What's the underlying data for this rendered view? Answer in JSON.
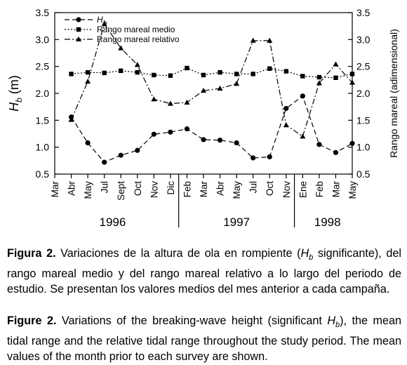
{
  "chart_data": {
    "type": "line",
    "categories": [
      "Mar",
      "Abr",
      "May",
      "Jul",
      "Sept",
      "Oct",
      "Nov",
      "Dic",
      "Feb",
      "Mar",
      "Abr",
      "May",
      "Jul",
      "Oct",
      "Nov",
      "Ene",
      "Feb",
      "Mar",
      "May"
    ],
    "year_groups": [
      {
        "label": "1996",
        "start": 0,
        "end": 7
      },
      {
        "label": "1997",
        "start": 8,
        "end": 14
      },
      {
        "label": "1998",
        "start": 15,
        "end": 18
      }
    ],
    "y_left": {
      "label": "H",
      "label_sub": "b",
      "label_unit": " (m)",
      "lim": [
        0.5,
        3.5
      ],
      "ticks": [
        "0.5",
        "1.0",
        "1.5",
        "2.0",
        "2.5",
        "3.0",
        "3.5"
      ]
    },
    "y_right": {
      "label": "Rango mareal (adimensional)",
      "lim": [
        0.5,
        3.5
      ],
      "ticks": [
        "0.5",
        "1.0",
        "1.5",
        "2.0",
        "2.5",
        "3.0",
        "3.5"
      ]
    },
    "legend": {
      "placement": "top-left"
    },
    "series": [
      {
        "name": "H",
        "name_sub": "b",
        "axis": "left",
        "marker": "circle",
        "dash": "dashed",
        "values": [
          null,
          1.56,
          1.08,
          0.72,
          0.85,
          0.94,
          1.24,
          1.28,
          1.34,
          1.14,
          1.13,
          1.08,
          0.8,
          0.82,
          1.72,
          1.95,
          1.05,
          0.9,
          1.07
        ]
      },
      {
        "name": "Rango mareal medio",
        "axis": "right",
        "marker": "square",
        "dash": "dotted",
        "values": [
          null,
          2.36,
          2.39,
          2.38,
          2.42,
          2.39,
          2.34,
          2.33,
          2.47,
          2.34,
          2.39,
          2.36,
          2.36,
          2.46,
          2.41,
          2.32,
          2.3,
          2.29,
          2.36
        ]
      },
      {
        "name": "Rango mareal relativo",
        "axis": "right",
        "marker": "triangle",
        "dash": "dashdot",
        "values": [
          null,
          1.51,
          2.22,
          3.29,
          2.84,
          2.53,
          1.89,
          1.81,
          1.83,
          2.05,
          2.09,
          2.18,
          2.98,
          2.98,
          1.41,
          1.2,
          2.19,
          2.54,
          2.2
        ]
      }
    ]
  },
  "caption": {
    "es_label": "Figura 2.",
    "es_text_1": " Variaciones de la altura de ola en rompiente (",
    "es_sym": "H",
    "es_sym_sub": "b",
    "es_text_2": " significante), del rango mareal medio y del rango mareal relativo a lo largo del periodo de estudio. Se presentan los valores medios del mes anterior a cada campaña.",
    "en_label": "Figure 2.",
    "en_text_1": " Variations of the breaking-wave height (significant ",
    "en_sym": "H",
    "en_sym_sub": "b",
    "en_text_2": "), the mean tidal range and the relative tidal range throughout the study period. The mean values of the month prior to each survey are shown."
  }
}
